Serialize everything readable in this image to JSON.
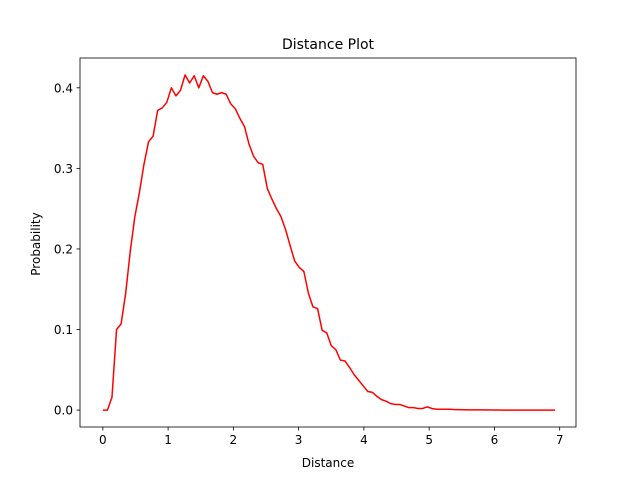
{
  "chart_data": {
    "type": "line",
    "title": "Distance Plot",
    "xlabel": "Distance",
    "ylabel": "Probability",
    "xlim": [
      -0.35,
      7.25
    ],
    "ylim": [
      -0.021,
      0.437
    ],
    "xticks": [
      0,
      1,
      2,
      3,
      4,
      5,
      6,
      7
    ],
    "xtick_labels": [
      "0",
      "1",
      "2",
      "3",
      "4",
      "5",
      "6",
      "7"
    ],
    "yticks": [
      0.0,
      0.1,
      0.2,
      0.3,
      0.4
    ],
    "ytick_labels": [
      "0.0",
      "0.1",
      "0.2",
      "0.3",
      "0.4"
    ],
    "grid": false,
    "legend": "none",
    "series": [
      {
        "color": "#ff0000",
        "x": [
          0.0,
          0.07,
          0.14,
          0.21,
          0.28,
          0.35,
          0.42,
          0.49,
          0.56,
          0.63,
          0.7,
          0.77,
          0.84,
          0.91,
          0.98,
          1.05,
          1.12,
          1.19,
          1.26,
          1.33,
          1.4,
          1.47,
          1.54,
          1.61,
          1.68,
          1.75,
          1.82,
          1.89,
          1.96,
          2.03,
          2.1,
          2.17,
          2.24,
          2.31,
          2.38,
          2.45,
          2.52,
          2.59,
          2.66,
          2.73,
          2.8,
          2.87,
          2.94,
          3.01,
          3.08,
          3.15,
          3.22,
          3.29,
          3.36,
          3.43,
          3.5,
          3.57,
          3.64,
          3.71,
          3.78,
          3.85,
          3.92,
          3.99,
          4.06,
          4.13,
          4.2,
          4.27,
          4.34,
          4.41,
          4.48,
          4.55,
          4.62,
          4.69,
          4.76,
          4.83,
          4.9,
          4.97,
          5.04,
          5.11,
          5.18,
          5.25,
          5.32,
          5.39,
          5.46,
          5.6,
          5.8,
          6.0,
          6.2,
          6.4,
          6.6,
          6.8,
          6.93
        ],
        "y": [
          0.0,
          0.0,
          0.016,
          0.1,
          0.107,
          0.145,
          0.197,
          0.24,
          0.27,
          0.305,
          0.333,
          0.34,
          0.372,
          0.375,
          0.382,
          0.4,
          0.39,
          0.397,
          0.416,
          0.406,
          0.415,
          0.4,
          0.415,
          0.408,
          0.394,
          0.392,
          0.394,
          0.392,
          0.38,
          0.374,
          0.362,
          0.352,
          0.33,
          0.315,
          0.307,
          0.305,
          0.275,
          0.262,
          0.25,
          0.24,
          0.224,
          0.204,
          0.185,
          0.177,
          0.172,
          0.145,
          0.128,
          0.126,
          0.099,
          0.096,
          0.08,
          0.075,
          0.062,
          0.061,
          0.053,
          0.044,
          0.037,
          0.03,
          0.023,
          0.022,
          0.017,
          0.013,
          0.011,
          0.008,
          0.007,
          0.007,
          0.005,
          0.003,
          0.003,
          0.002,
          0.002,
          0.004,
          0.002,
          0.001,
          0.001,
          0.001,
          0.001,
          0.0005,
          0.0005,
          0.0003,
          0.0002,
          0.0001,
          0.0,
          0.0,
          0.0,
          0.0,
          0.0
        ]
      }
    ]
  }
}
